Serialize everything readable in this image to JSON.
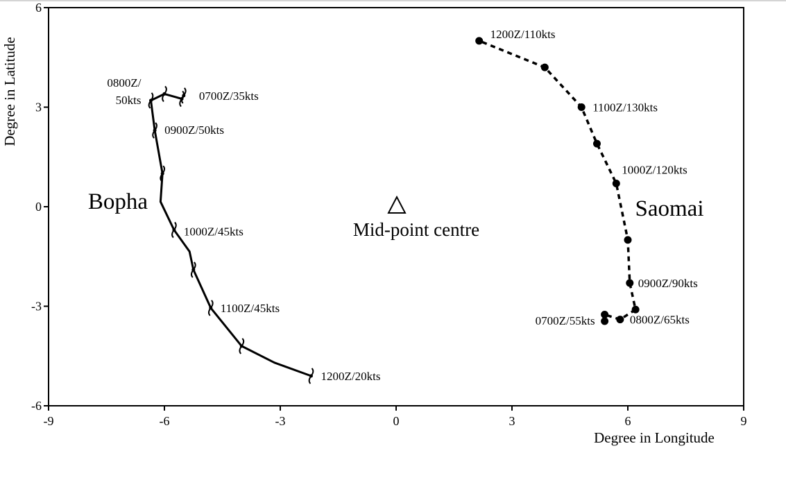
{
  "chart_data": {
    "type": "line",
    "xlabel": "Degree in Longitude",
    "ylabel": "Degree in Latitude",
    "xlim": [
      -9,
      9
    ],
    "ylim": [
      -6,
      6
    ],
    "xticks": [
      -9,
      -6,
      -3,
      0,
      3,
      6,
      9
    ],
    "yticks": [
      -6,
      -3,
      0,
      3,
      6
    ],
    "grid": false,
    "series": [
      {
        "name": "Bopha",
        "style": "solid",
        "marker": "typhoon-symbol",
        "points": [
          {
            "x": -5.5,
            "y": 3.35
          },
          {
            "x": -5.55,
            "y": 3.25
          },
          {
            "x": -6.0,
            "y": 3.4
          },
          {
            "x": -6.35,
            "y": 3.2
          },
          {
            "x": -6.25,
            "y": 2.3
          },
          {
            "x": -6.05,
            "y": 1.0
          },
          {
            "x": -6.1,
            "y": 0.15
          },
          {
            "x": -5.75,
            "y": -0.7
          },
          {
            "x": -5.35,
            "y": -1.35
          },
          {
            "x": -5.25,
            "y": -1.9
          },
          {
            "x": -4.8,
            "y": -3.05
          },
          {
            "x": -4.0,
            "y": -4.2
          },
          {
            "x": -3.15,
            "y": -4.7
          },
          {
            "x": -2.2,
            "y": -5.1
          }
        ],
        "markers": [
          {
            "x": -5.5,
            "y": 3.35
          },
          {
            "x": -5.55,
            "y": 3.25
          },
          {
            "x": -6.0,
            "y": 3.4
          },
          {
            "x": -6.35,
            "y": 3.2
          },
          {
            "x": -6.25,
            "y": 2.3
          },
          {
            "x": -6.05,
            "y": 1.0
          },
          {
            "x": -5.75,
            "y": -0.7
          },
          {
            "x": -5.25,
            "y": -1.9
          },
          {
            "x": -4.8,
            "y": -3.05
          },
          {
            "x": -4.0,
            "y": -4.2
          },
          {
            "x": -2.2,
            "y": -5.1
          }
        ],
        "labels": [
          {
            "text": "0700Z/35kts",
            "x": -5.5,
            "y": 3.35
          },
          {
            "text": "0800Z/",
            "x": -6.35,
            "y": 3.2
          },
          {
            "text": "50kts",
            "x": -6.35,
            "y": 3.2
          },
          {
            "text": "0900Z/50kts",
            "x": -6.25,
            "y": 2.3
          },
          {
            "text": "1000Z/45kts",
            "x": -5.75,
            "y": -0.7
          },
          {
            "text": "1100Z/45kts",
            "x": -4.8,
            "y": -3.05
          },
          {
            "text": "1200Z/20kts",
            "x": -2.2,
            "y": -5.1
          }
        ]
      },
      {
        "name": "Saomai",
        "style": "dashed",
        "marker": "filled-circle",
        "points": [
          {
            "x": 5.4,
            "y": -3.45
          },
          {
            "x": 5.4,
            "y": -3.25
          },
          {
            "x": 5.8,
            "y": -3.4
          },
          {
            "x": 6.2,
            "y": -3.1
          },
          {
            "x": 6.05,
            "y": -2.3
          },
          {
            "x": 6.0,
            "y": -1.0
          },
          {
            "x": 5.7,
            "y": 0.7
          },
          {
            "x": 5.2,
            "y": 1.9
          },
          {
            "x": 4.8,
            "y": 3.0
          },
          {
            "x": 3.85,
            "y": 4.2
          },
          {
            "x": 2.15,
            "y": 5.0
          }
        ],
        "labels": [
          {
            "text": "0700Z/55kts",
            "x": 5.4,
            "y": -3.45
          },
          {
            "text": "0800Z/65kts",
            "x": 5.8,
            "y": -3.4
          },
          {
            "text": "0900Z/90kts",
            "x": 6.05,
            "y": -2.3
          },
          {
            "text": "1000Z/120kts",
            "x": 5.7,
            "y": 0.7
          },
          {
            "text": "1100Z/130kts",
            "x": 4.8,
            "y": 3.0
          },
          {
            "text": "1200Z/110kts",
            "x": 2.15,
            "y": 5.0
          }
        ]
      }
    ],
    "annotations": [
      {
        "text": "Bopha"
      },
      {
        "text": "Saomai"
      },
      {
        "text": "Mid-point centre",
        "x": 0,
        "y": 0,
        "marker": "open-triangle"
      }
    ]
  }
}
